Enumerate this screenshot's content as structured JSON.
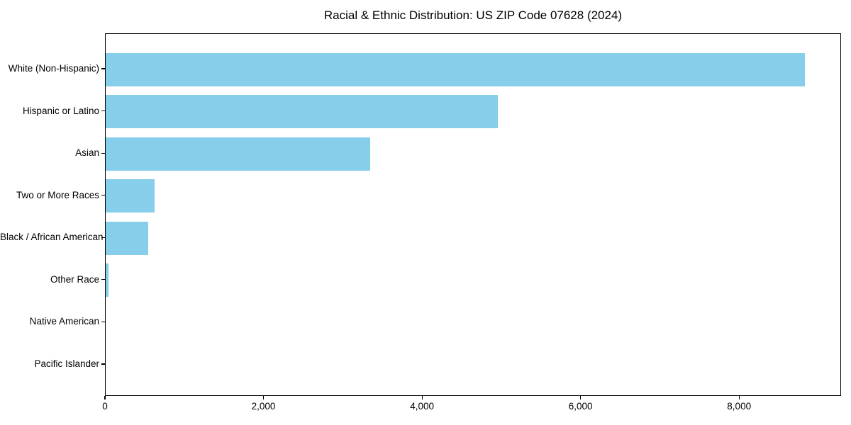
{
  "chart_data": {
    "type": "bar",
    "orientation": "horizontal",
    "title": "Racial & Ethnic Distribution: US ZIP Code 07628 (2024)",
    "categories": [
      "White (Non-Hispanic)",
      "Hispanic or Latino",
      "Asian",
      "Two or More Races",
      "Black / African American",
      "Other Race",
      "Native American",
      "Pacific Islander"
    ],
    "values": [
      8820,
      4950,
      3340,
      615,
      535,
      35,
      0,
      0
    ],
    "xlabel": "",
    "ylabel": "",
    "xlim": [
      0,
      9265
    ],
    "x_ticks": [
      0,
      2000,
      4000,
      6000,
      8000
    ],
    "x_tick_labels": [
      "0",
      "2,000",
      "4,000",
      "6,000",
      "8,000"
    ],
    "bar_color": "#87CEEB",
    "axis_color": "#000000",
    "text_color": "#000000",
    "background_color": "#ffffff",
    "grid": false,
    "legend": null,
    "categories_order": "top-to-bottom"
  }
}
